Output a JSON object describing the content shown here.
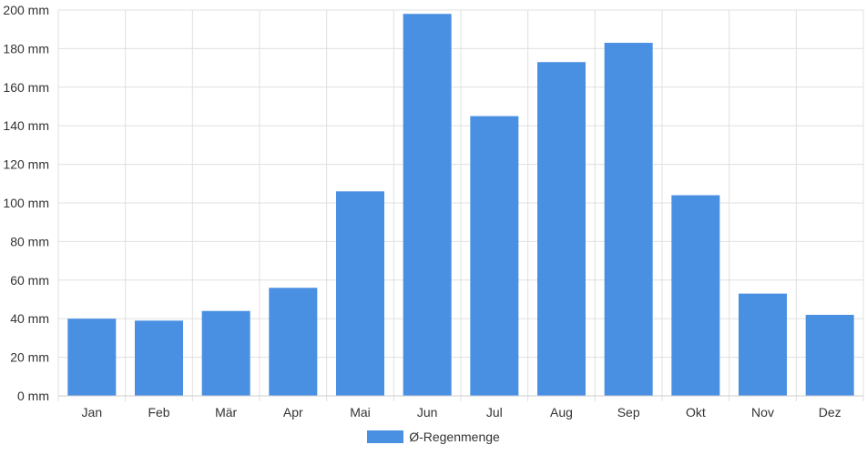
{
  "chart_data": {
    "type": "bar",
    "categories": [
      "Jan",
      "Feb",
      "Mär",
      "Apr",
      "Mai",
      "Jun",
      "Jul",
      "Aug",
      "Sep",
      "Okt",
      "Nov",
      "Dez"
    ],
    "series": [
      {
        "name": "Ø-Regenmenge",
        "values": [
          40,
          39,
          44,
          56,
          106,
          198,
          145,
          173,
          183,
          104,
          53,
          42
        ],
        "color": "#4a90e2"
      }
    ],
    "ylim": [
      0,
      200
    ],
    "ytick_step": 20,
    "ytick_unit": "mm",
    "grid": true,
    "legend_position": "bottom-center"
  }
}
